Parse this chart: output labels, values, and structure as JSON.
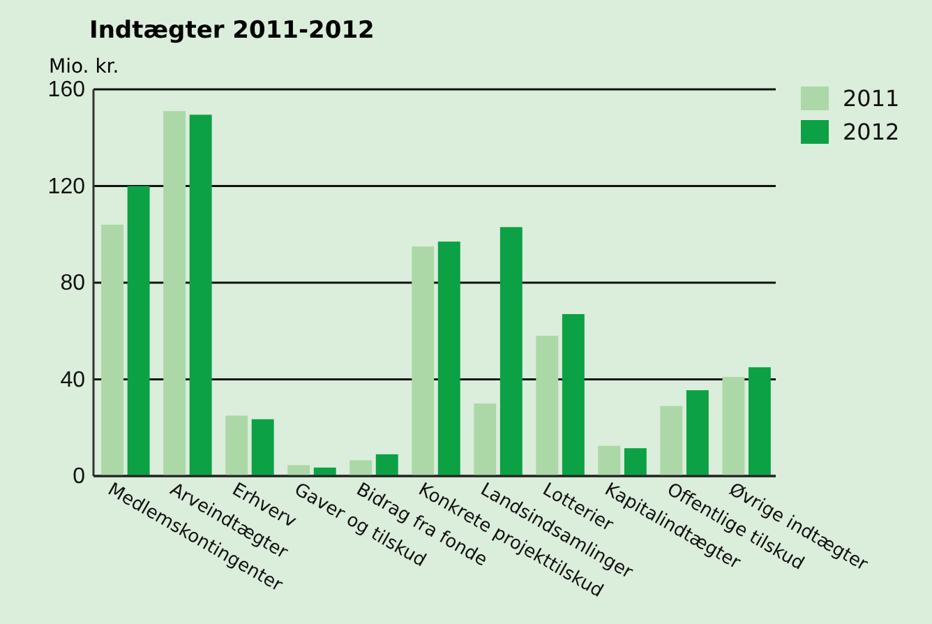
{
  "chart_data": {
    "type": "bar",
    "title": "Indtægter 2011-2012",
    "ylabel": "Mio. kr.",
    "categories": [
      "Medlemskontingenter",
      "Arveindtægter",
      "Erhverv",
      "Gaver og tilskud",
      "Bidrag fra fonde",
      "Konkrete projekttilskud",
      "Landsindsamlinger",
      "Lotterier",
      "Kapitalindtægter",
      "Offentlige tilskud",
      "Øvrige indtægter"
    ],
    "series": [
      {
        "name": "2011",
        "color": "#acd8a7",
        "values": [
          104,
          151,
          25,
          4.5,
          6.5,
          95,
          30,
          58,
          12.5,
          29,
          41
        ]
      },
      {
        "name": "2012",
        "color": "#0ca144",
        "values": [
          120,
          149.5,
          23.5,
          3.5,
          9,
          97,
          103,
          67,
          11.5,
          35.5,
          45
        ]
      }
    ],
    "ylim": [
      0,
      160
    ],
    "yticks": [
      0,
      40,
      80,
      120,
      160
    ],
    "grid": "y",
    "legend": "top right"
  }
}
